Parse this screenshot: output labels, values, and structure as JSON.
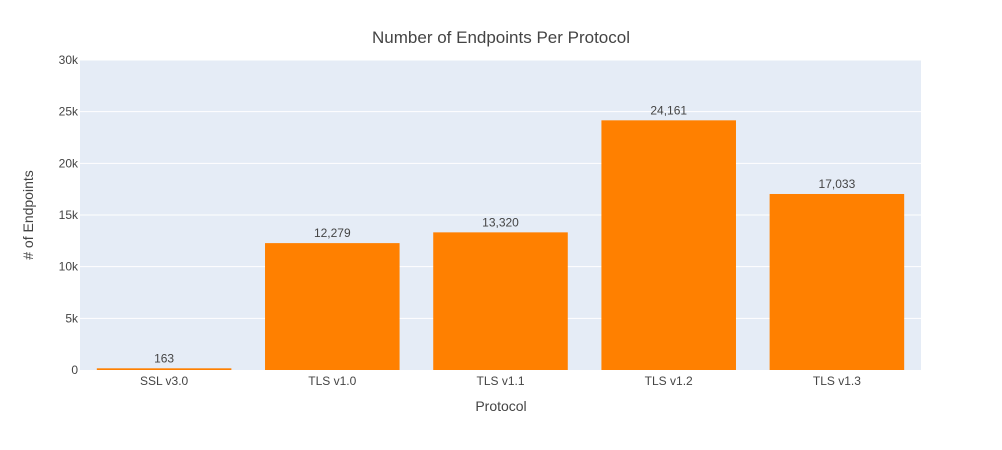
{
  "chart_data": {
    "type": "bar",
    "title": "Number of Endpoints Per Protocol",
    "xlabel": "Protocol",
    "ylabel": "# of Endpoints",
    "categories": [
      "SSL v3.0",
      "TLS v1.0",
      "TLS v1.1",
      "TLS v1.2",
      "TLS v1.3"
    ],
    "values": [
      163,
      12279,
      13320,
      24161,
      17033
    ],
    "data_labels": [
      "163",
      "12,279",
      "13,320",
      "24,161",
      "17,033"
    ],
    "ylim": [
      0,
      30000
    ],
    "yticks": [
      0,
      5000,
      10000,
      15000,
      20000,
      25000,
      30000
    ],
    "ytick_labels": [
      "0",
      "5k",
      "10k",
      "15k",
      "20k",
      "25k",
      "30k"
    ],
    "grid": true,
    "legend": "none",
    "colors": {
      "bar": "#ff8000",
      "plot_background": "#e5ecf6",
      "grid": "#ffffff",
      "text": "#444444"
    }
  }
}
